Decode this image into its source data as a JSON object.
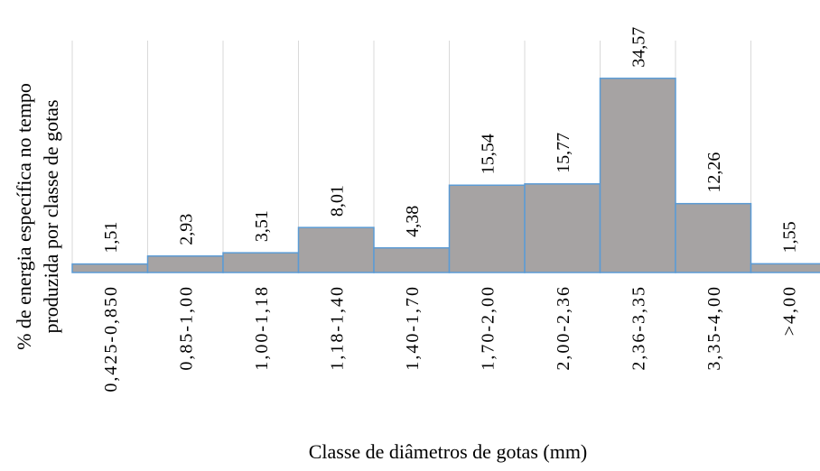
{
  "chart_data": {
    "type": "bar",
    "x_label": "Classe de diâmetros de gotas (mm)",
    "y_label": [
      "% de energia específica no tempo",
      "produzida por classe de gotas"
    ],
    "categories": [
      "0,425-0,850",
      "0,85-1,00",
      "1,00-1,18",
      "1,18-1,40",
      "1,40-1,70",
      "1,70-2,00",
      "2,00-2,36",
      "2,36-3,35",
      "3,35-4,00",
      ">4,00"
    ],
    "values": [
      1.51,
      2.93,
      3.51,
      8.01,
      4.38,
      15.54,
      15.77,
      34.57,
      12.26,
      1.55
    ],
    "value_labels": [
      "1,51",
      "2,93",
      "3,51",
      "8,01",
      "4,38",
      "15,54",
      "15,77",
      "34,57",
      "12,26",
      "1,55"
    ],
    "color": "#a6a3a3",
    "edge_color": "#5b9bd5",
    "ylim": [
      0,
      40
    ]
  }
}
